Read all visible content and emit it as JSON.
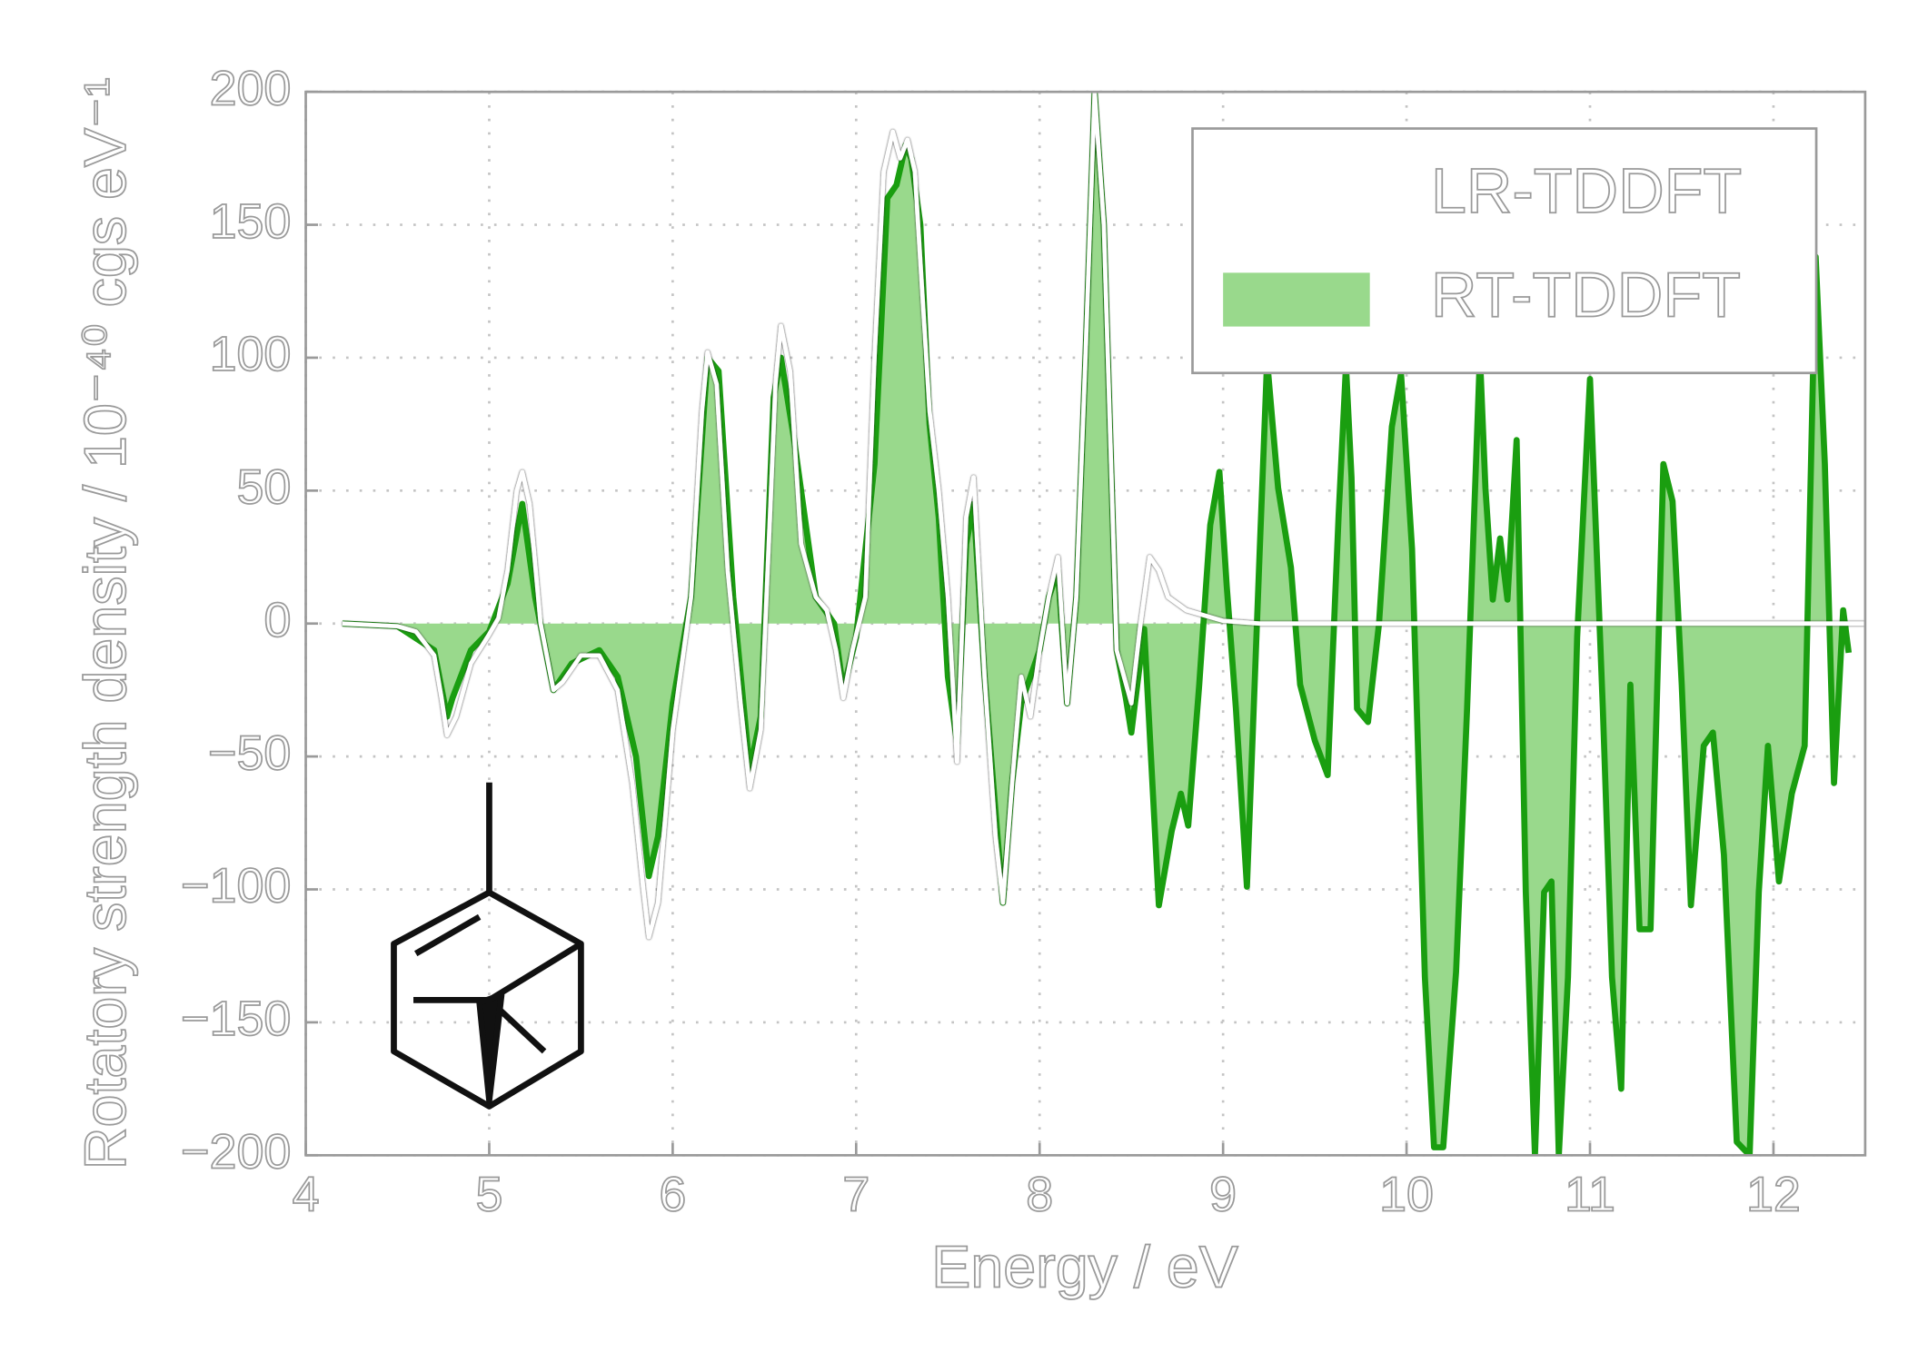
{
  "chart_data": {
    "type": "line",
    "xlabel": "Energy / eV",
    "ylabel": "Rotatory strength density / 10⁻⁴⁰ cgs eV⁻¹",
    "xlim": [
      4,
      12.5
    ],
    "ylim": [
      -200,
      200
    ],
    "xticks": [
      4,
      5,
      6,
      7,
      8,
      9,
      10,
      11,
      12
    ],
    "yticks": [
      {
        "value": -200,
        "label": "−200"
      },
      {
        "value": -150,
        "label": "−150"
      },
      {
        "value": -100,
        "label": "−100"
      },
      {
        "value": -50,
        "label": "−50"
      },
      0,
      50,
      100,
      150,
      200
    ],
    "grid": true,
    "legend": "upper right",
    "series": [
      {
        "name": "LR-TDDFT",
        "color": "#ffffff",
        "style": "line",
        "x": [
          4.2,
          4.5,
          4.6,
          4.7,
          4.74,
          4.77,
          4.82,
          4.9,
          5.0,
          5.05,
          5.1,
          5.15,
          5.18,
          5.22,
          5.28,
          5.35,
          5.4,
          5.5,
          5.6,
          5.7,
          5.78,
          5.84,
          5.87,
          5.92,
          6.0,
          6.1,
          6.16,
          6.19,
          6.24,
          6.3,
          6.37,
          6.42,
          6.48,
          6.53,
          6.56,
          6.59,
          6.64,
          6.7,
          6.78,
          6.84,
          6.89,
          6.93,
          6.98,
          7.05,
          7.1,
          7.15,
          7.2,
          7.24,
          7.28,
          7.32,
          7.4,
          7.45,
          7.5,
          7.55,
          7.6,
          7.64,
          7.7,
          7.76,
          7.8,
          7.85,
          7.9,
          7.95,
          8.0,
          8.05,
          8.1,
          8.15,
          8.2,
          8.25,
          8.3,
          8.35,
          8.42,
          8.5,
          8.55,
          8.6,
          8.65,
          8.7,
          8.8,
          9.0,
          9.2,
          12.5
        ],
        "values": [
          0,
          -1,
          -3,
          -12,
          -28,
          -42,
          -35,
          -15,
          -4,
          2,
          20,
          50,
          57,
          45,
          0,
          -25,
          -22,
          -12,
          -12,
          -25,
          -60,
          -100,
          -118,
          -105,
          -40,
          10,
          80,
          102,
          90,
          20,
          -30,
          -62,
          -40,
          40,
          90,
          112,
          95,
          30,
          10,
          5,
          -10,
          -28,
          -10,
          10,
          100,
          170,
          185,
          175,
          182,
          170,
          80,
          50,
          10,
          -52,
          40,
          55,
          -20,
          -80,
          -105,
          -60,
          -20,
          -35,
          -10,
          10,
          25,
          -30,
          10,
          100,
          200,
          150,
          -10,
          -30,
          0,
          25,
          20,
          10,
          5,
          1,
          0,
          0
        ]
      },
      {
        "name": "RT-TDDFT",
        "color": "#99d98c",
        "line_color": "#1a9e10",
        "style": "area",
        "x": [
          4.2,
          4.5,
          4.7,
          4.77,
          4.8,
          4.9,
          5.0,
          5.1,
          5.18,
          5.25,
          5.35,
          5.45,
          5.6,
          5.7,
          5.8,
          5.87,
          5.92,
          6.0,
          6.1,
          6.19,
          6.25,
          6.33,
          6.42,
          6.48,
          6.55,
          6.59,
          6.66,
          6.78,
          6.88,
          6.93,
          7.0,
          7.1,
          7.17,
          7.22,
          7.27,
          7.3,
          7.35,
          7.4,
          7.45,
          7.5,
          7.55,
          7.6,
          7.64,
          7.7,
          7.8,
          7.85,
          7.9,
          8.0,
          8.05,
          8.1,
          8.15,
          8.2,
          8.25,
          8.3,
          8.35,
          8.42,
          8.47,
          8.5,
          8.57,
          8.6,
          8.65,
          8.72,
          8.77,
          8.81,
          8.87,
          8.93,
          8.98,
          9.02,
          9.07,
          9.13,
          9.2,
          9.24,
          9.3,
          9.37,
          9.42,
          9.5,
          9.57,
          9.63,
          9.67,
          9.7,
          9.73,
          9.79,
          9.85,
          9.92,
          9.97,
          10.03,
          10.1,
          10.15,
          10.2,
          10.27,
          10.33,
          10.4,
          10.43,
          10.47,
          10.51,
          10.55,
          10.6,
          10.65,
          10.7,
          10.75,
          10.79,
          10.83,
          10.88,
          10.93,
          11.0,
          11.07,
          11.12,
          11.17,
          11.22,
          11.27,
          11.33,
          11.4,
          11.45,
          11.5,
          11.55,
          11.62,
          11.67,
          11.73,
          11.8,
          11.87,
          11.92,
          11.97,
          12.03,
          12.1,
          12.17,
          12.23,
          12.28,
          12.33,
          12.38,
          12.41
        ],
        "values": [
          0,
          -1,
          -10,
          -35,
          -28,
          -10,
          -3,
          15,
          45,
          10,
          -25,
          -15,
          -10,
          -20,
          -50,
          -95,
          -80,
          -30,
          10,
          100,
          95,
          10,
          -55,
          -35,
          85,
          100,
          70,
          10,
          0,
          -25,
          -5,
          60,
          160,
          165,
          180,
          175,
          150,
          75,
          40,
          -20,
          -45,
          30,
          45,
          -20,
          -105,
          -60,
          -30,
          -10,
          10,
          20,
          -30,
          10,
          100,
          200,
          150,
          -10,
          -28,
          -41,
          -2,
          -41,
          -106,
          -78,
          -64,
          -76,
          -23,
          37,
          57,
          14,
          -32,
          -99,
          28,
          99,
          51,
          21,
          -23,
          -44,
          -57,
          41,
          97,
          55,
          -32,
          -37,
          0,
          74,
          94,
          28,
          -133,
          -197,
          -197,
          -131,
          -32,
          101,
          51,
          9,
          32,
          9,
          69,
          -101,
          -200,
          -101,
          -97,
          -200,
          -133,
          -5,
          92,
          -32,
          -133,
          -175,
          -23,
          -115,
          -115,
          60,
          46,
          -23,
          -106,
          -46,
          -41,
          -87,
          -195,
          -200,
          -101,
          -46,
          -97,
          -64,
          -46,
          138,
          60,
          -60,
          5,
          -11
        ]
      }
    ]
  }
}
